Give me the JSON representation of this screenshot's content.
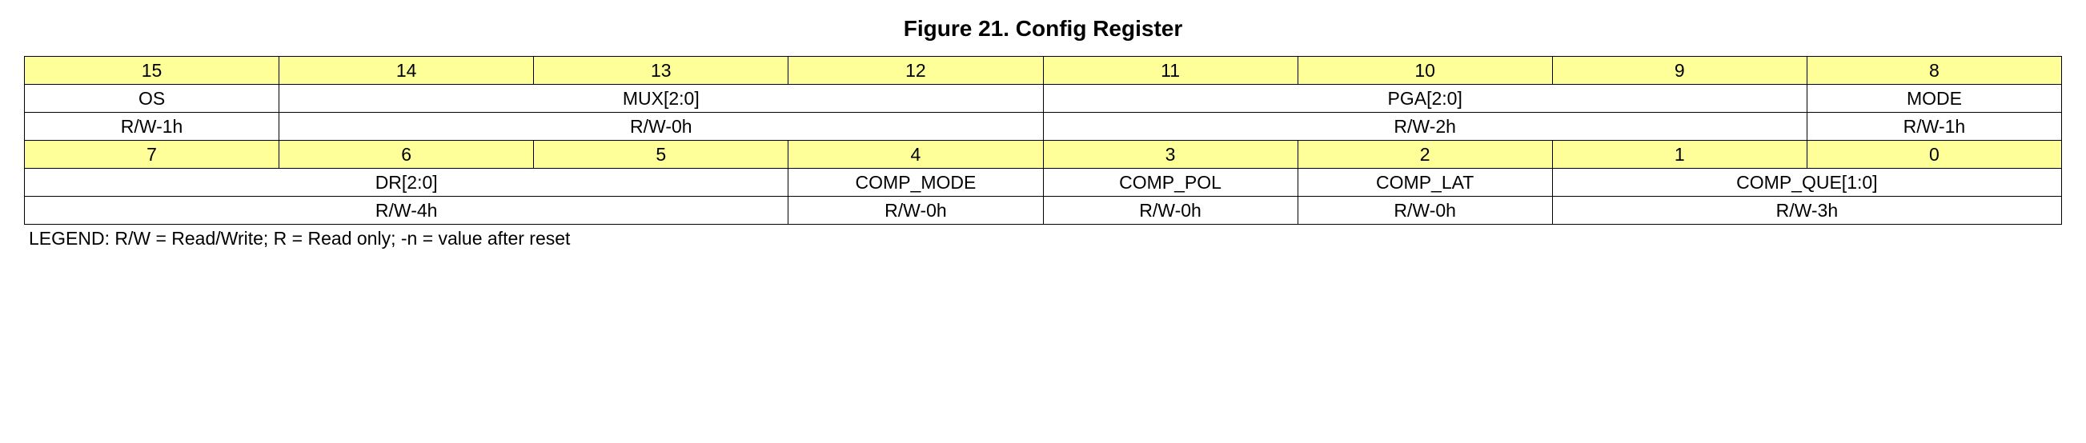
{
  "title": "Figure 21.  Config Register",
  "colors": {
    "bit_header_bg": "#ffff99",
    "border": "#000000",
    "background": "#ffffff",
    "text": "#000000"
  },
  "register": {
    "high": {
      "bits": [
        "15",
        "14",
        "13",
        "12",
        "11",
        "10",
        "9",
        "8"
      ],
      "fields": [
        {
          "name": "OS",
          "span": 1,
          "reset": "R/W-1h"
        },
        {
          "name": "MUX[2:0]",
          "span": 3,
          "reset": "R/W-0h"
        },
        {
          "name": "PGA[2:0]",
          "span": 3,
          "reset": "R/W-2h"
        },
        {
          "name": "MODE",
          "span": 1,
          "reset": "R/W-1h"
        }
      ]
    },
    "low": {
      "bits": [
        "7",
        "6",
        "5",
        "4",
        "3",
        "2",
        "1",
        "0"
      ],
      "fields": [
        {
          "name": "DR[2:0]",
          "span": 3,
          "reset": "R/W-4h"
        },
        {
          "name": "COMP_MODE",
          "span": 1,
          "reset": "R/W-0h"
        },
        {
          "name": "COMP_POL",
          "span": 1,
          "reset": "R/W-0h"
        },
        {
          "name": "COMP_LAT",
          "span": 1,
          "reset": "R/W-0h"
        },
        {
          "name": "COMP_QUE[1:0]",
          "span": 2,
          "reset": "R/W-3h"
        }
      ]
    }
  },
  "legend": "LEGEND: R/W = Read/Write; R = Read only; -n = value after reset"
}
